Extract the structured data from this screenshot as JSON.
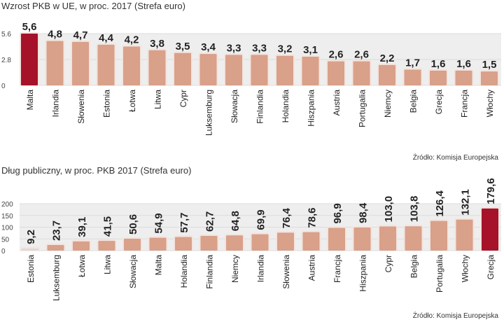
{
  "chart_data": [
    {
      "type": "bar",
      "title": "Wzrost PKB w UE, w proc. 2017 (Strefa euro)",
      "source": "Źródło:  Komisja Europejska",
      "yticks": [
        "0",
        "2.8",
        "5.6"
      ],
      "ylim": [
        0,
        5.6
      ],
      "categories": [
        "Malta",
        "Irlandia",
        "Słowenia",
        "Estonia",
        "Łotwa",
        "Litwa",
        "Cypr",
        "Luksemburg",
        "Słowacja",
        "Finlandia",
        "Holandia",
        "Hiszpania",
        "Austria",
        "Portugalia",
        "Niemcy",
        "Belgia",
        "Grecja",
        "Francja",
        "Włochy"
      ],
      "values": [
        5.6,
        4.8,
        4.7,
        4.4,
        4.2,
        3.8,
        3.5,
        3.4,
        3.3,
        3.3,
        3.2,
        3.1,
        2.6,
        2.6,
        2.2,
        1.7,
        1.6,
        1.6,
        1.5
      ],
      "labels": [
        "5,6",
        "4,8",
        "4,7",
        "4,4",
        "4,2",
        "3,8",
        "3,5",
        "3,4",
        "3,3",
        "3,3",
        "3,2",
        "3,1",
        "2,6",
        "2,6",
        "2,2",
        "1,7",
        "1,6",
        "1,6",
        "1,5"
      ],
      "highlight": "Malta"
    },
    {
      "type": "bar",
      "title": "Dług publiczny, w proc. PKB 2017 (Strefa euro)",
      "source": "Źródło:  Komisja Europejska",
      "yticks": [
        "0",
        "50",
        "100",
        "150",
        "200"
      ],
      "ylim": [
        0,
        200
      ],
      "categories": [
        "Estonia",
        "Luksemburg",
        "Łotwa",
        "Litwa",
        "Słowacja",
        "Malta",
        "Holandia",
        "Finlandia",
        "Niemcy",
        "Irlandia",
        "Słowenia",
        "Austria",
        "Francja",
        "Hiszpania",
        "Cypr",
        "Belgia",
        "Portugalia",
        "Włochy",
        "Grecja"
      ],
      "values": [
        9.2,
        23.7,
        39.1,
        41.5,
        50.6,
        54.9,
        57.7,
        62.7,
        64.8,
        69.9,
        76.4,
        78.6,
        96.9,
        98.4,
        103.0,
        103.8,
        126.4,
        132.1,
        179.6
      ],
      "labels": [
        "9,2",
        "23,7",
        "39,1",
        "41,5",
        "50,6",
        "54,9",
        "57,7",
        "62,7",
        "64,8",
        "69,9",
        "76,4",
        "78,6",
        "96,9",
        "98,4",
        "103,0",
        "103,8",
        "126,4",
        "132,1",
        "179,6"
      ],
      "highlight": "Grecja",
      "light": "Estonia"
    }
  ],
  "colors": {
    "bar": "#d9a08a",
    "highlight": "#a6122a",
    "light": "#e4d8d2",
    "band": "#eeeeee"
  }
}
